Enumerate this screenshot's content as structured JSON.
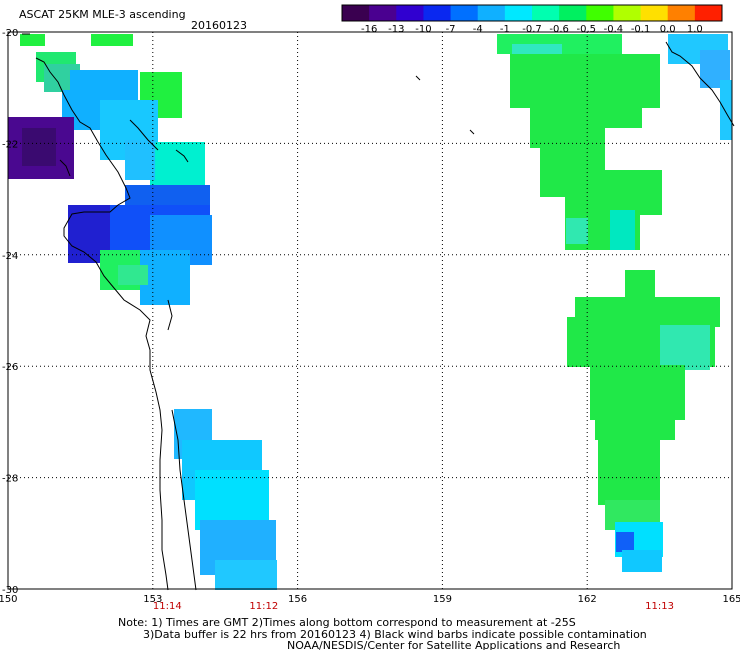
{
  "header": {
    "title": "ASCAT 25KM MLE-3 ascending",
    "date": "20160123"
  },
  "colorbar": {
    "labels": [
      "-16",
      "-13",
      "-10",
      "-7",
      "-4",
      "-1",
      "-0.7",
      "-0.6",
      "-0.5",
      "-0.4",
      "-0.1",
      "0.0",
      "1.0"
    ],
    "colors": [
      "#3a0050",
      "#4a0090",
      "#3000d0",
      "#0a28f0",
      "#0070ff",
      "#10b0ff",
      "#00e8ff",
      "#00ffb0",
      "#00f060",
      "#40ff00",
      "#b0ff00",
      "#ffe000",
      "#ff8000",
      "#ff2000"
    ]
  },
  "map": {
    "lon_labels": [
      "150",
      "153",
      "156",
      "159",
      "162",
      "165"
    ],
    "lat_labels": [
      "-20",
      "-22",
      "-24",
      "-26",
      "-28",
      "-30"
    ],
    "times": [
      {
        "label": "11:14",
        "lon": 153.3
      },
      {
        "label": "11:12",
        "lon": 155.3
      },
      {
        "label": "11:13",
        "lon": 163.5
      }
    ],
    "lon_range": [
      150,
      165
    ],
    "lat_range": [
      -20,
      -30
    ],
    "grid": true,
    "gridline_style": "dotted"
  },
  "notes": {
    "line1": "Note: 1) Times are GMT 2)Times along bottom correspond to measurement at -25S",
    "line2": "3)Data buffer is 22 hrs from 20160123 4) Black wind barbs indicate possible contamination",
    "line3": "NOAA/NESDIS/Center for Satellite Applications and Research"
  }
}
